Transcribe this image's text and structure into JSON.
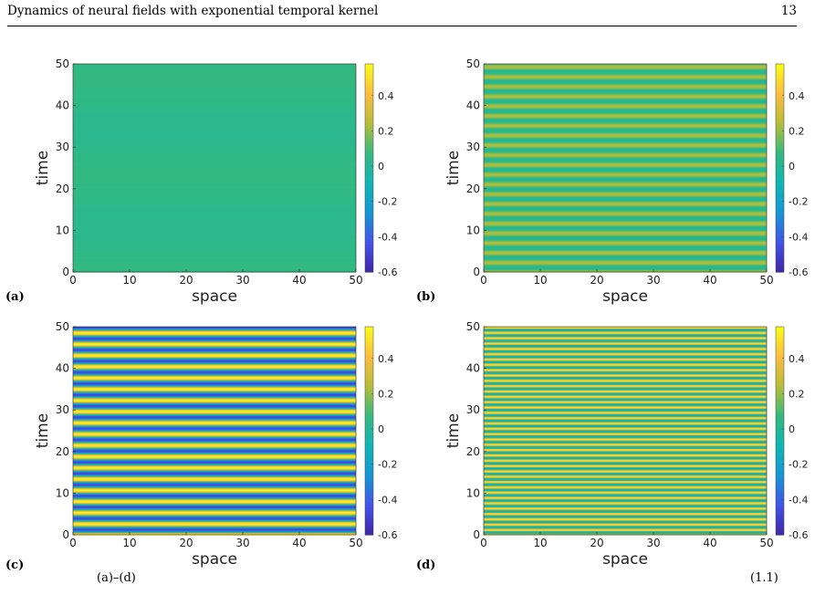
{
  "header": {
    "running_title": "Dynamics of neural fields with exponential temporal kernel",
    "page_number": "13"
  },
  "caption": {
    "left_fragment": "(a)–(d)",
    "right_fragment": "(1.1)"
  },
  "colors": {
    "colormap": "parula",
    "colormap_stops": [
      "#3e26a8",
      "#4352e8",
      "#1596d4",
      "#0fb5b5",
      "#33b97f",
      "#b5bd3a",
      "#fcbc3f",
      "#f9fb15"
    ],
    "axis": "#000000"
  },
  "chart_data": [
    {
      "type": "heatmap",
      "panel_label": "(a)",
      "xlabel": "space",
      "ylabel": "time",
      "xlim": [
        0,
        50
      ],
      "ylim": [
        0,
        50
      ],
      "xticks": [
        "0",
        "10",
        "20",
        "30",
        "40",
        "50"
      ],
      "yticks": [
        "0",
        "10",
        "20",
        "30",
        "40",
        "50"
      ],
      "colorbar": {
        "range": [
          -0.6,
          0.58
        ],
        "ticks": [
          "0.4",
          "0.2",
          "0",
          "-0.2",
          "-0.4",
          "-0.6"
        ]
      },
      "pattern": "uniform in space, slow temporal oscillation of near-zero amplitude",
      "temporal_period": 23,
      "amplitude": 0.02,
      "offset": 0.05
    },
    {
      "type": "heatmap",
      "panel_label": "(b)",
      "xlabel": "space",
      "ylabel": "time",
      "xlim": [
        0,
        50
      ],
      "ylim": [
        0,
        50
      ],
      "xticks": [
        "0",
        "10",
        "20",
        "30",
        "40",
        "50"
      ],
      "yticks": [
        "0",
        "10",
        "20",
        "30",
        "40",
        "50"
      ],
      "colorbar": {
        "range": [
          -0.6,
          0.58
        ],
        "ticks": [
          "0.4",
          "0.2",
          "0",
          "-0.2",
          "-0.4",
          "-0.6"
        ]
      },
      "pattern": "uniform in space, periodic temporal oscillation",
      "temporal_period": 2.35,
      "amplitude": 0.12,
      "offset": 0.12
    },
    {
      "type": "heatmap",
      "panel_label": "(c)",
      "xlabel": "space",
      "ylabel": "time",
      "xlim": [
        0,
        50
      ],
      "ylim": [
        0,
        50
      ],
      "xticks": [
        "0",
        "10",
        "20",
        "30",
        "40",
        "50"
      ],
      "yticks": [
        "0",
        "10",
        "20",
        "30",
        "40",
        "50"
      ],
      "colorbar": {
        "range": [
          -0.6,
          0.58
        ],
        "ticks": [
          "0.4",
          "0.2",
          "0",
          "-0.2",
          "-0.4",
          "-0.6"
        ]
      },
      "pattern": "uniform in space, large-amplitude periodic temporal oscillation",
      "temporal_period": 2.7,
      "amplitude": 0.52,
      "offset": 0.04
    },
    {
      "type": "heatmap",
      "panel_label": "(d)",
      "xlabel": "space",
      "ylabel": "time",
      "xlim": [
        0,
        50
      ],
      "ylim": [
        0,
        50
      ],
      "xticks": [
        "0",
        "10",
        "20",
        "30",
        "40",
        "50"
      ],
      "yticks": [
        "0",
        "10",
        "20",
        "30",
        "40",
        "50"
      ],
      "colorbar": {
        "range": [
          -0.6,
          0.58
        ],
        "ticks": [
          "0.4",
          "0.2",
          "0",
          "-0.2",
          "-0.4",
          "-0.6"
        ]
      },
      "pattern": "uniform in space, fast periodic temporal oscillation",
      "temporal_period": 1.28,
      "amplitude": 0.33,
      "offset": 0.18
    }
  ]
}
